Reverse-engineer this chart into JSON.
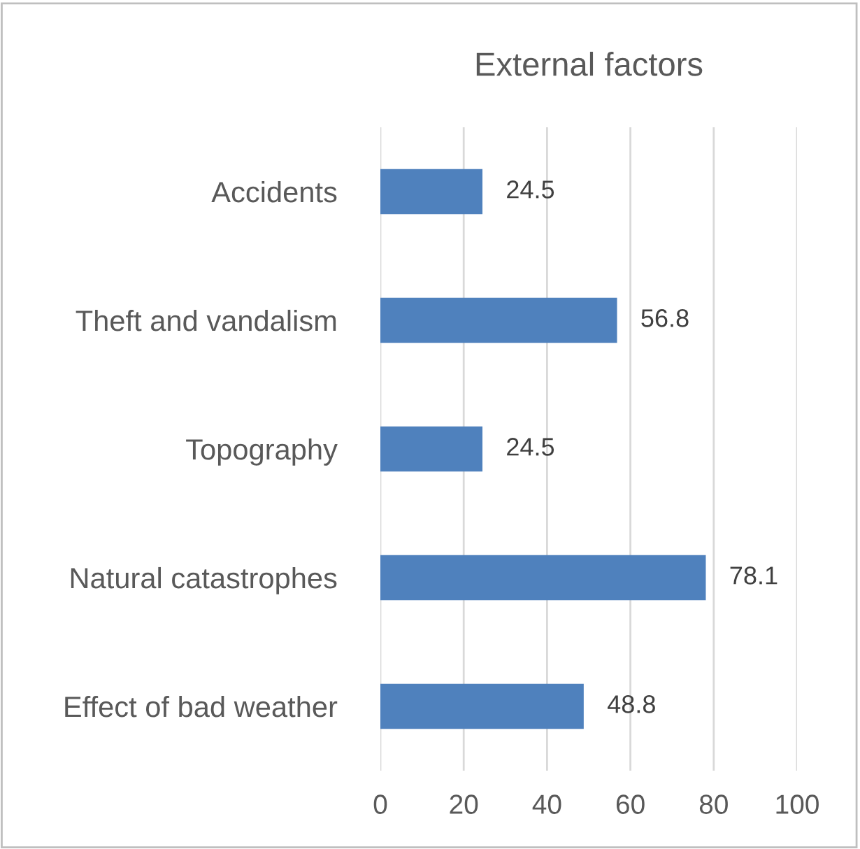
{
  "chart_data": {
    "type": "bar",
    "orientation": "horizontal",
    "title": "External factors",
    "categories": [
      "Accidents",
      "Theft and vandalism",
      "Topography",
      "Natural catastrophes",
      "Effect of bad weather"
    ],
    "values": [
      24.5,
      56.8,
      24.5,
      78.1,
      48.8
    ],
    "color": "#4f81bd",
    "xlim": [
      0,
      100
    ],
    "xticks": [
      0,
      20,
      40,
      60,
      80,
      100
    ],
    "grid": "x",
    "data_labels": true
  }
}
